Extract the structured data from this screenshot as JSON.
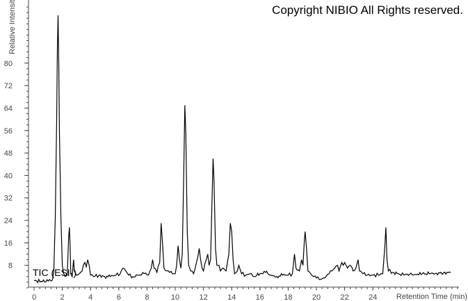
{
  "copyright": "Copyright NIBIO All Rights reserved.",
  "chart_data": {
    "type": "line",
    "title": "",
    "xlabel": "Retention Time (min)",
    "ylabel": "Relative Intensity",
    "xlim": [
      0,
      30
    ],
    "ylim": [
      0,
      100
    ],
    "x_ticks": [
      0,
      2,
      4,
      6,
      8,
      10,
      12,
      14,
      16,
      18,
      20,
      22,
      24
    ],
    "y_ticks": [
      8,
      16,
      24,
      32,
      40,
      48,
      56,
      64,
      72,
      80
    ],
    "grid": false,
    "line_color": "#000000",
    "series": [
      {
        "name": "TIC (ESI-)",
        "points": [
          [
            0,
            2.5
          ],
          [
            0.5,
            2.3
          ],
          [
            1.0,
            2.4
          ],
          [
            1.3,
            2.8
          ],
          [
            1.4,
            6
          ],
          [
            1.5,
            25
          ],
          [
            1.6,
            60
          ],
          [
            1.65,
            85
          ],
          [
            1.7,
            97
          ],
          [
            1.75,
            80
          ],
          [
            1.8,
            55
          ],
          [
            1.9,
            25
          ],
          [
            2.0,
            8
          ],
          [
            2.1,
            5
          ],
          [
            2.2,
            4
          ],
          [
            2.35,
            4.5
          ],
          [
            2.45,
            18
          ],
          [
            2.5,
            21.5
          ],
          [
            2.55,
            15
          ],
          [
            2.6,
            5
          ],
          [
            2.7,
            4
          ],
          [
            2.8,
            10
          ],
          [
            2.85,
            6
          ],
          [
            3.0,
            4.5
          ],
          [
            3.2,
            5
          ],
          [
            3.4,
            6
          ],
          [
            3.6,
            9
          ],
          [
            3.7,
            7.5
          ],
          [
            3.8,
            10
          ],
          [
            3.9,
            8
          ],
          [
            4.0,
            4.5
          ],
          [
            4.3,
            4
          ],
          [
            4.6,
            4.5
          ],
          [
            5.0,
            4
          ],
          [
            5.4,
            4
          ],
          [
            5.8,
            4.5
          ],
          [
            6.1,
            5
          ],
          [
            6.3,
            7
          ],
          [
            6.5,
            6
          ],
          [
            6.7,
            4.5
          ],
          [
            7.0,
            4
          ],
          [
            7.4,
            4.5
          ],
          [
            7.8,
            5
          ],
          [
            8.1,
            4.5
          ],
          [
            8.3,
            7
          ],
          [
            8.4,
            10
          ],
          [
            8.5,
            7
          ],
          [
            8.7,
            5.5
          ],
          [
            8.9,
            9
          ],
          [
            9.0,
            23
          ],
          [
            9.1,
            16
          ],
          [
            9.2,
            7
          ],
          [
            9.4,
            6
          ],
          [
            9.6,
            5.5
          ],
          [
            9.8,
            5
          ],
          [
            10.0,
            5
          ],
          [
            10.1,
            8
          ],
          [
            10.2,
            15
          ],
          [
            10.3,
            10
          ],
          [
            10.4,
            7
          ],
          [
            10.5,
            12
          ],
          [
            10.6,
            40
          ],
          [
            10.68,
            65
          ],
          [
            10.75,
            55
          ],
          [
            10.85,
            20
          ],
          [
            10.95,
            8
          ],
          [
            11.1,
            6
          ],
          [
            11.3,
            5
          ],
          [
            11.5,
            9
          ],
          [
            11.6,
            11
          ],
          [
            11.7,
            14
          ],
          [
            11.8,
            10
          ],
          [
            11.9,
            7
          ],
          [
            12.0,
            6
          ],
          [
            12.2,
            10
          ],
          [
            12.3,
            12
          ],
          [
            12.4,
            8
          ],
          [
            12.5,
            10
          ],
          [
            12.6,
            30
          ],
          [
            12.68,
            46
          ],
          [
            12.75,
            38
          ],
          [
            12.85,
            14
          ],
          [
            12.95,
            8
          ],
          [
            13.1,
            8
          ],
          [
            13.2,
            6
          ],
          [
            13.4,
            7
          ],
          [
            13.6,
            6
          ],
          [
            13.8,
            12
          ],
          [
            13.9,
            23
          ],
          [
            14.0,
            20
          ],
          [
            14.1,
            10
          ],
          [
            14.2,
            5
          ],
          [
            14.4,
            6
          ],
          [
            14.5,
            8
          ],
          [
            14.7,
            5
          ],
          [
            15.0,
            4.5
          ],
          [
            15.3,
            5
          ],
          [
            15.6,
            4
          ],
          [
            16.0,
            5
          ],
          [
            16.4,
            5.5
          ],
          [
            16.8,
            4.5
          ],
          [
            17.2,
            4
          ],
          [
            17.6,
            4.5
          ],
          [
            18.0,
            4.5
          ],
          [
            18.3,
            5
          ],
          [
            18.45,
            12
          ],
          [
            18.55,
            7
          ],
          [
            18.8,
            6
          ],
          [
            18.95,
            10
          ],
          [
            19.05,
            8
          ],
          [
            19.15,
            17
          ],
          [
            19.2,
            20
          ],
          [
            19.3,
            14
          ],
          [
            19.4,
            6
          ],
          [
            19.6,
            5
          ],
          [
            19.8,
            4
          ],
          [
            20.0,
            3.5
          ],
          [
            20.3,
            3
          ],
          [
            20.6,
            3.5
          ],
          [
            20.9,
            5
          ],
          [
            21.1,
            6
          ],
          [
            21.3,
            7
          ],
          [
            21.5,
            8
          ],
          [
            21.6,
            6
          ],
          [
            21.8,
            9
          ],
          [
            21.9,
            8
          ],
          [
            22.0,
            9
          ],
          [
            22.2,
            7
          ],
          [
            22.4,
            8
          ],
          [
            22.6,
            6
          ],
          [
            22.8,
            7
          ],
          [
            22.95,
            10
          ],
          [
            23.05,
            6
          ],
          [
            23.3,
            5
          ],
          [
            23.6,
            4.5
          ],
          [
            24.0,
            4.5
          ],
          [
            24.4,
            4.5
          ],
          [
            24.7,
            5
          ],
          [
            24.85,
            15
          ],
          [
            24.92,
            21.5
          ],
          [
            25.0,
            10
          ],
          [
            25.1,
            6
          ],
          [
            25.4,
            5.5
          ],
          [
            25.8,
            5
          ],
          [
            26.2,
            4.5
          ],
          [
            26.6,
            4.8
          ],
          [
            27.0,
            4.8
          ],
          [
            27.5,
            5
          ],
          [
            28.0,
            5
          ],
          [
            28.5,
            5.2
          ],
          [
            29.0,
            5.3
          ],
          [
            29.5,
            5.4
          ]
        ]
      }
    ]
  }
}
